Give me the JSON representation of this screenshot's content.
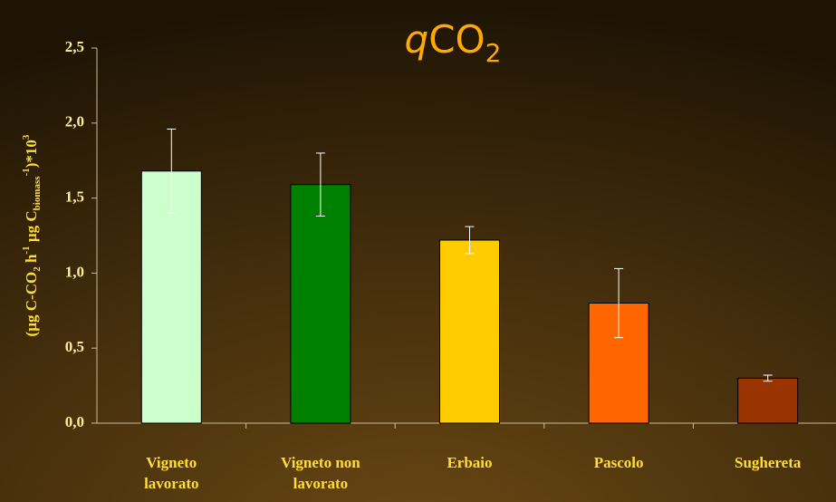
{
  "chart_data": {
    "type": "bar",
    "title": {
      "italic": "q",
      "main": "CO",
      "sub": "2"
    },
    "y_label": [
      "(µg C-CO",
      "2",
      " h",
      "-1",
      " µg C",
      "biomass",
      "-1",
      ")*10",
      "3"
    ],
    "categories": [
      [
        "Vigneto",
        "lavorato"
      ],
      [
        "Vigneto non",
        "lavorato"
      ],
      [
        "Erbaio"
      ],
      [
        "Pascolo"
      ],
      [
        "Sughereta"
      ]
    ],
    "values": [
      1.68,
      1.59,
      1.22,
      0.8,
      0.3
    ],
    "errors": [
      0.28,
      0.21,
      0.09,
      0.23,
      0.02
    ],
    "colors": [
      "#ccffcc",
      "#008000",
      "#ffcc00",
      "#ff6600",
      "#993300"
    ],
    "ylim": [
      0,
      2.5
    ],
    "yticks": [
      {
        "value": 0,
        "label": "0,0"
      },
      {
        "value": 0.5,
        "label": "0,5"
      },
      {
        "value": 1,
        "label": "1,0"
      },
      {
        "value": 1.5,
        "label": "1,5"
      },
      {
        "value": 2,
        "label": "2,0"
      },
      {
        "value": 2.5,
        "label": "2,5"
      }
    ]
  }
}
